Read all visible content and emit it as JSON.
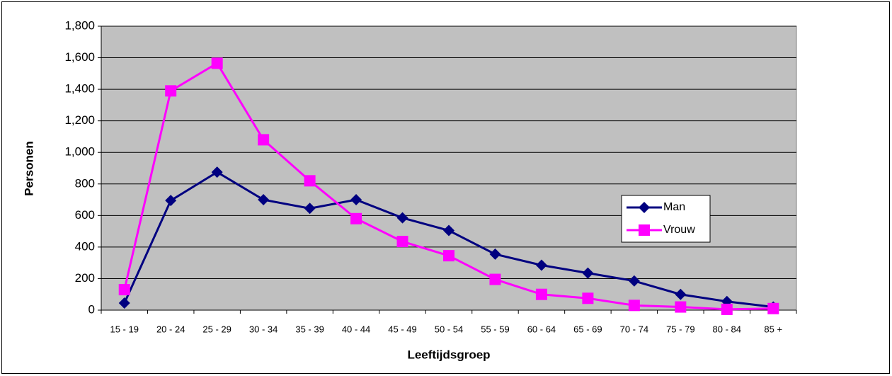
{
  "chart_data": {
    "type": "line",
    "categories": [
      "15 - 19",
      "20 - 24",
      "25 - 29",
      "30 - 34",
      "35 - 39",
      "40 - 44",
      "45 - 49",
      "50 - 54",
      "55 - 59",
      "60 - 64",
      "65 - 69",
      "70 - 74",
      "75 - 79",
      "80 - 84",
      "85 +"
    ],
    "series": [
      {
        "name": "Man",
        "color": "#000080",
        "marker": "diamond",
        "values": [
          45,
          695,
          875,
          700,
          645,
          700,
          585,
          505,
          355,
          285,
          235,
          185,
          100,
          55,
          20
        ]
      },
      {
        "name": "Vrouw",
        "color": "#ff00ff",
        "marker": "square",
        "values": [
          130,
          1390,
          1565,
          1080,
          820,
          580,
          435,
          345,
          195,
          100,
          75,
          30,
          20,
          5,
          10
        ]
      }
    ],
    "ylim": [
      0,
      1800
    ],
    "yticks": [
      0,
      200,
      400,
      600,
      800,
      {
        "value": 1000,
        "label": "1,000"
      },
      {
        "value": 1200,
        "label": "1,200"
      },
      {
        "value": 1400,
        "label": "1,400"
      },
      {
        "value": 1600,
        "label": "1,600"
      },
      {
        "value": 1800,
        "label": "1,800"
      }
    ],
    "xlabel": "Leeftijdsgroep",
    "ylabel": "Personen",
    "grid": true,
    "legend": "right",
    "plot_background": "#c0c0c0"
  }
}
